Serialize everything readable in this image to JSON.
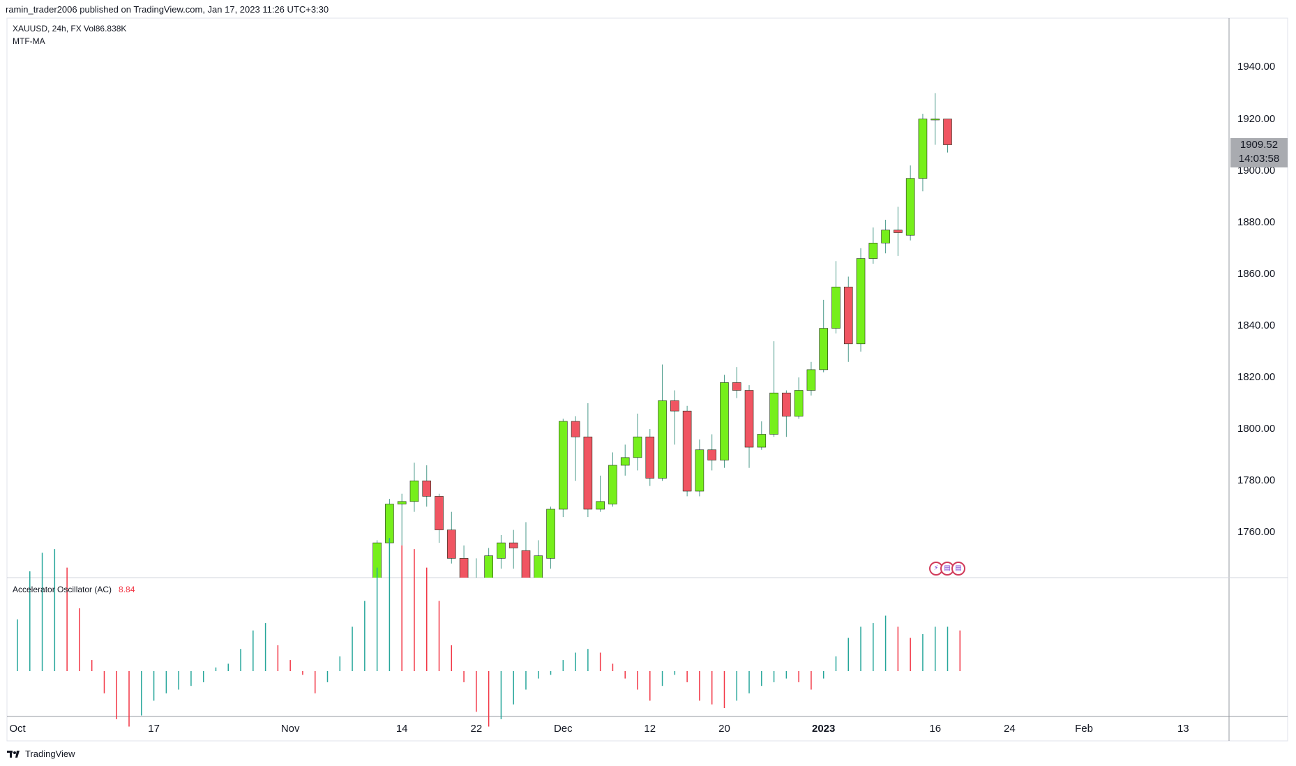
{
  "header": {
    "text": "ramin_trader2006 published on TradingView.com, Jan 17, 2023 11:26 UTC+3:30"
  },
  "symbol": {
    "text": "XAUUSD, 24h, FX  Vol86.838K"
  },
  "indicator_top": {
    "text": "MTF-MA"
  },
  "oscillator": {
    "name": "Accelerator Oscillator (AC)",
    "value": "8.84",
    "value_color": "#f23645"
  },
  "price_box": {
    "price": "1909.52",
    "countdown": "14:03:58"
  },
  "footer": {
    "brand": "TradingView"
  },
  "colors": {
    "up": "#76ef1b",
    "down": "#f05562",
    "ac_up": "#26a69a",
    "ac_down": "#f23645",
    "wick": "#4a9a8a"
  },
  "chart_data": {
    "type": "candlestick",
    "y_ticks": [
      "1760.00",
      "1780.00",
      "1800.00",
      "1820.00",
      "1840.00",
      "1860.00",
      "1880.00",
      "1900.00",
      "1920.00",
      "1940.00"
    ],
    "x_ticks": [
      {
        "label": "Oct",
        "i": 0,
        "bold": false
      },
      {
        "label": "17",
        "i": 11,
        "bold": false
      },
      {
        "label": "Nov",
        "i": 22,
        "bold": false
      },
      {
        "label": "14",
        "i": 31,
        "bold": false
      },
      {
        "label": "22",
        "i": 37,
        "bold": false
      },
      {
        "label": "Dec",
        "i": 44,
        "bold": false
      },
      {
        "label": "12",
        "i": 51,
        "bold": false
      },
      {
        "label": "20",
        "i": 57,
        "bold": false
      },
      {
        "label": "2023",
        "i": 65,
        "bold": true
      },
      {
        "label": "16",
        "i": 74,
        "bold": false
      },
      {
        "label": "24",
        "i": 80,
        "bold": false
      },
      {
        "label": "Feb",
        "i": 86,
        "bold": false
      },
      {
        "label": "13",
        "i": 94,
        "bold": false
      }
    ],
    "candles": [
      {
        "i": 29,
        "o": 1734,
        "h": 1757,
        "l": 1730,
        "c": 1756
      },
      {
        "i": 30,
        "o": 1756,
        "h": 1773,
        "l": 1748,
        "c": 1771
      },
      {
        "i": 31,
        "o": 1771,
        "h": 1775,
        "l": 1755,
        "c": 1772
      },
      {
        "i": 32,
        "o": 1772,
        "h": 1787,
        "l": 1768,
        "c": 1780
      },
      {
        "i": 33,
        "o": 1780,
        "h": 1786,
        "l": 1770,
        "c": 1774
      },
      {
        "i": 34,
        "o": 1774,
        "h": 1775,
        "l": 1756,
        "c": 1761
      },
      {
        "i": 35,
        "o": 1761,
        "h": 1768,
        "l": 1748,
        "c": 1750
      },
      {
        "i": 36,
        "o": 1750,
        "h": 1755,
        "l": 1735,
        "c": 1738
      },
      {
        "i": 37,
        "o": 1738,
        "h": 1750,
        "l": 1730,
        "c": 1740
      },
      {
        "i": 38,
        "o": 1738,
        "h": 1754,
        "l": 1735,
        "c": 1751
      },
      {
        "i": 39,
        "o": 1750,
        "h": 1759,
        "l": 1746,
        "c": 1756
      },
      {
        "i": 40,
        "o": 1756,
        "h": 1761,
        "l": 1746,
        "c": 1754
      },
      {
        "i": 41,
        "o": 1753,
        "h": 1764,
        "l": 1737,
        "c": 1740
      },
      {
        "i": 42,
        "o": 1740,
        "h": 1757,
        "l": 1735,
        "c": 1751
      },
      {
        "i": 43,
        "o": 1750,
        "h": 1770,
        "l": 1746,
        "c": 1769
      },
      {
        "i": 44,
        "o": 1769,
        "h": 1804,
        "l": 1766,
        "c": 1803
      },
      {
        "i": 45,
        "o": 1803,
        "h": 1805,
        "l": 1780,
        "c": 1797
      },
      {
        "i": 46,
        "o": 1797,
        "h": 1810,
        "l": 1766,
        "c": 1769
      },
      {
        "i": 47,
        "o": 1769,
        "h": 1782,
        "l": 1768,
        "c": 1772
      },
      {
        "i": 48,
        "o": 1771,
        "h": 1791,
        "l": 1770,
        "c": 1786
      },
      {
        "i": 49,
        "o": 1786,
        "h": 1794,
        "l": 1782,
        "c": 1789
      },
      {
        "i": 50,
        "o": 1789,
        "h": 1806,
        "l": 1784,
        "c": 1797
      },
      {
        "i": 51,
        "o": 1797,
        "h": 1800,
        "l": 1778,
        "c": 1781
      },
      {
        "i": 52,
        "o": 1781,
        "h": 1825,
        "l": 1780,
        "c": 1811
      },
      {
        "i": 53,
        "o": 1811,
        "h": 1815,
        "l": 1794,
        "c": 1807
      },
      {
        "i": 54,
        "o": 1807,
        "h": 1809,
        "l": 1774,
        "c": 1776
      },
      {
        "i": 55,
        "o": 1776,
        "h": 1796,
        "l": 1774,
        "c": 1792
      },
      {
        "i": 56,
        "o": 1792,
        "h": 1798,
        "l": 1784,
        "c": 1788
      },
      {
        "i": 57,
        "o": 1788,
        "h": 1821,
        "l": 1785,
        "c": 1818
      },
      {
        "i": 58,
        "o": 1818,
        "h": 1824,
        "l": 1812,
        "c": 1815
      },
      {
        "i": 59,
        "o": 1815,
        "h": 1817,
        "l": 1785,
        "c": 1793
      },
      {
        "i": 60,
        "o": 1793,
        "h": 1803,
        "l": 1792,
        "c": 1798
      },
      {
        "i": 61,
        "o": 1798,
        "h": 1834,
        "l": 1797,
        "c": 1814
      },
      {
        "i": 62,
        "o": 1814,
        "h": 1815,
        "l": 1797,
        "c": 1805
      },
      {
        "i": 63,
        "o": 1805,
        "h": 1820,
        "l": 1804,
        "c": 1815
      },
      {
        "i": 64,
        "o": 1815,
        "h": 1826,
        "l": 1813,
        "c": 1823
      },
      {
        "i": 65,
        "o": 1823,
        "h": 1850,
        "l": 1822,
        "c": 1839
      },
      {
        "i": 66,
        "o": 1839,
        "h": 1865,
        "l": 1837,
        "c": 1855
      },
      {
        "i": 67,
        "o": 1855,
        "h": 1859,
        "l": 1826,
        "c": 1833
      },
      {
        "i": 68,
        "o": 1833,
        "h": 1870,
        "l": 1830,
        "c": 1866
      },
      {
        "i": 69,
        "o": 1866,
        "h": 1878,
        "l": 1864,
        "c": 1872
      },
      {
        "i": 70,
        "o": 1872,
        "h": 1881,
        "l": 1868,
        "c": 1877
      },
      {
        "i": 71,
        "o": 1877,
        "h": 1886,
        "l": 1867,
        "c": 1876
      },
      {
        "i": 72,
        "o": 1875,
        "h": 1902,
        "l": 1873,
        "c": 1897
      },
      {
        "i": 73,
        "o": 1897,
        "h": 1922,
        "l": 1892,
        "c": 1920
      },
      {
        "i": 74,
        "o": 1920,
        "h": 1930,
        "l": 1910,
        "c": 1920
      },
      {
        "i": 75,
        "o": 1920,
        "h": 1920,
        "l": 1907,
        "c": 1910
      }
    ],
    "ac": [
      {
        "i": 0,
        "v": 14
      },
      {
        "i": 1,
        "v": 27
      },
      {
        "i": 2,
        "v": 32
      },
      {
        "i": 3,
        "v": 33
      },
      {
        "i": 4,
        "v": 28
      },
      {
        "i": 5,
        "v": 17
      },
      {
        "i": 6,
        "v": 3
      },
      {
        "i": 7,
        "v": -6
      },
      {
        "i": 8,
        "v": -13
      },
      {
        "i": 9,
        "v": -15
      },
      {
        "i": 10,
        "v": -12
      },
      {
        "i": 11,
        "v": -8
      },
      {
        "i": 12,
        "v": -6
      },
      {
        "i": 13,
        "v": -5
      },
      {
        "i": 14,
        "v": -4
      },
      {
        "i": 15,
        "v": -3
      },
      {
        "i": 16,
        "v": 1
      },
      {
        "i": 17,
        "v": 2
      },
      {
        "i": 18,
        "v": 6
      },
      {
        "i": 19,
        "v": 11
      },
      {
        "i": 20,
        "v": 13
      },
      {
        "i": 21,
        "v": 7
      },
      {
        "i": 22,
        "v": 3
      },
      {
        "i": 23,
        "v": -1
      },
      {
        "i": 24,
        "v": -6
      },
      {
        "i": 25,
        "v": -3
      },
      {
        "i": 26,
        "v": 4
      },
      {
        "i": 27,
        "v": 12
      },
      {
        "i": 28,
        "v": 19
      },
      {
        "i": 29,
        "v": 28
      },
      {
        "i": 30,
        "v": 36
      },
      {
        "i": 31,
        "v": 34
      },
      {
        "i": 32,
        "v": 33
      },
      {
        "i": 33,
        "v": 28
      },
      {
        "i": 34,
        "v": 19
      },
      {
        "i": 35,
        "v": 7
      },
      {
        "i": 36,
        "v": -3
      },
      {
        "i": 37,
        "v": -11
      },
      {
        "i": 38,
        "v": -15
      },
      {
        "i": 39,
        "v": -13
      },
      {
        "i": 40,
        "v": -9
      },
      {
        "i": 41,
        "v": -5
      },
      {
        "i": 42,
        "v": -2
      },
      {
        "i": 43,
        "v": -1
      },
      {
        "i": 44,
        "v": 3
      },
      {
        "i": 45,
        "v": 5
      },
      {
        "i": 46,
        "v": 6
      },
      {
        "i": 47,
        "v": 5
      },
      {
        "i": 48,
        "v": 2
      },
      {
        "i": 49,
        "v": -2
      },
      {
        "i": 50,
        "v": -5
      },
      {
        "i": 51,
        "v": -8
      },
      {
        "i": 52,
        "v": -4
      },
      {
        "i": 53,
        "v": -1
      },
      {
        "i": 54,
        "v": -3
      },
      {
        "i": 55,
        "v": -8
      },
      {
        "i": 56,
        "v": -9
      },
      {
        "i": 57,
        "v": -10
      },
      {
        "i": 58,
        "v": -8
      },
      {
        "i": 59,
        "v": -6
      },
      {
        "i": 60,
        "v": -4
      },
      {
        "i": 61,
        "v": -3
      },
      {
        "i": 62,
        "v": -2
      },
      {
        "i": 63,
        "v": -3
      },
      {
        "i": 64,
        "v": -5
      },
      {
        "i": 65,
        "v": -2
      },
      {
        "i": 66,
        "v": 4
      },
      {
        "i": 67,
        "v": 9
      },
      {
        "i": 68,
        "v": 12
      },
      {
        "i": 69,
        "v": 13
      },
      {
        "i": 70,
        "v": 15
      },
      {
        "i": 71,
        "v": 12
      },
      {
        "i": 72,
        "v": 9
      },
      {
        "i": 73,
        "v": 10
      },
      {
        "i": 74,
        "v": 12
      },
      {
        "i": 75,
        "v": 12
      },
      {
        "i": 76,
        "v": 11
      }
    ]
  }
}
